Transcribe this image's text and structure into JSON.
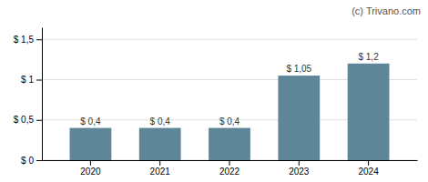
{
  "chart_data": {
    "type": "bar",
    "categories": [
      "2020",
      "2021",
      "2022",
      "2023",
      "2024"
    ],
    "values": [
      0.4,
      0.4,
      0.4,
      1.05,
      1.2
    ],
    "value_labels": [
      "$ 0,4",
      "$ 0,4",
      "$ 0,4",
      "$ 1,05",
      "$ 1,2"
    ],
    "data_labels": true,
    "color": "#5f8599",
    "ylim": [
      0,
      1.65
    ],
    "yticks": [
      {
        "value": 0,
        "label": "$ 0"
      },
      {
        "value": 0.5,
        "label": "$ 0,5"
      },
      {
        "value": 1.0,
        "label": "$ 1"
      },
      {
        "value": 1.5,
        "label": "$ 1,5"
      }
    ],
    "grid": true,
    "annotations": [
      "(c) Trivano.com"
    ]
  }
}
